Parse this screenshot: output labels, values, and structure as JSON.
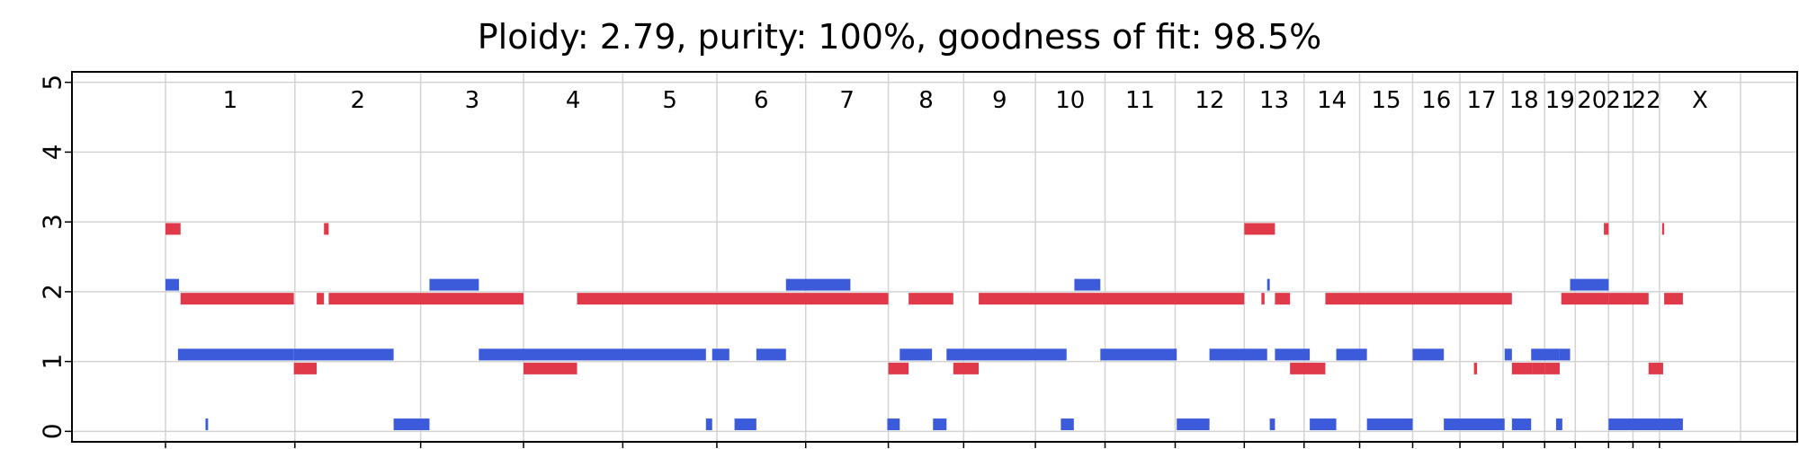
{
  "chart_data": {
    "type": "bar",
    "title": "Ploidy: 2.79, purity: 100%, goodness of fit: 98.5%",
    "xlabel": "",
    "ylabel": "",
    "ylim": [
      -0.15,
      5.15
    ],
    "y_ticks": [
      0,
      1,
      2,
      3,
      4,
      5
    ],
    "xlim_mb": [
      -180,
      3140
    ],
    "grid": true,
    "colors": {
      "major_allele": "#e0394a",
      "minor_allele": "#3b5bdb",
      "grid": "#d3d3d3"
    },
    "chromosomes": [
      {
        "name": "1",
        "start": 0,
        "end": 249
      },
      {
        "name": "2",
        "start": 249,
        "end": 491
      },
      {
        "name": "3",
        "start": 491,
        "end": 689
      },
      {
        "name": "4",
        "start": 689,
        "end": 880
      },
      {
        "name": "5",
        "start": 880,
        "end": 1061
      },
      {
        "name": "6",
        "start": 1061,
        "end": 1232
      },
      {
        "name": "7",
        "start": 1232,
        "end": 1391
      },
      {
        "name": "8",
        "start": 1391,
        "end": 1536
      },
      {
        "name": "9",
        "start": 1536,
        "end": 1674
      },
      {
        "name": "10",
        "start": 1674,
        "end": 1808
      },
      {
        "name": "11",
        "start": 1808,
        "end": 1943
      },
      {
        "name": "12",
        "start": 1943,
        "end": 2076
      },
      {
        "name": "13",
        "start": 2076,
        "end": 2191
      },
      {
        "name": "14",
        "start": 2191,
        "end": 2298
      },
      {
        "name": "15",
        "start": 2298,
        "end": 2400
      },
      {
        "name": "16",
        "start": 2400,
        "end": 2491
      },
      {
        "name": "17",
        "start": 2491,
        "end": 2574
      },
      {
        "name": "18",
        "start": 2574,
        "end": 2654
      },
      {
        "name": "19",
        "start": 2654,
        "end": 2713
      },
      {
        "name": "20",
        "start": 2713,
        "end": 2777
      },
      {
        "name": "21",
        "start": 2777,
        "end": 2824
      },
      {
        "name": "22",
        "start": 2824,
        "end": 2875
      },
      {
        "name": "X",
        "start": 2875,
        "end": 3031
      }
    ],
    "series": [
      {
        "role": "major",
        "segments": [
          {
            "start": 0,
            "end": 29,
            "value": 2.9
          },
          {
            "start": 29,
            "end": 247,
            "value": 1.9
          },
          {
            "start": 247,
            "end": 291,
            "value": 0.9
          },
          {
            "start": 291,
            "end": 305,
            "value": 1.9
          },
          {
            "start": 305,
            "end": 314,
            "value": 2.9
          },
          {
            "start": 314,
            "end": 689,
            "value": 1.9
          },
          {
            "start": 689,
            "end": 792,
            "value": 0.9
          },
          {
            "start": 792,
            "end": 1391,
            "value": 1.9
          },
          {
            "start": 1391,
            "end": 1430,
            "value": 0.9
          },
          {
            "start": 1430,
            "end": 1516,
            "value": 1.9
          },
          {
            "start": 1516,
            "end": 1565,
            "value": 0.9
          },
          {
            "start": 1565,
            "end": 2076,
            "value": 1.9
          },
          {
            "start": 2076,
            "end": 2135,
            "value": 2.9
          },
          {
            "start": 2109,
            "end": 2115,
            "value": 1.9
          },
          {
            "start": 2135,
            "end": 2164,
            "value": 1.9
          },
          {
            "start": 2164,
            "end": 2232,
            "value": 0.9
          },
          {
            "start": 2232,
            "end": 2591,
            "value": 1.9
          },
          {
            "start": 2518,
            "end": 2524,
            "value": 0.9
          },
          {
            "start": 2591,
            "end": 2631,
            "value": 0.9
          },
          {
            "start": 2631,
            "end": 2654,
            "value": 0.9
          },
          {
            "start": 2654,
            "end": 2683,
            "value": 0.9
          },
          {
            "start": 2686,
            "end": 2777,
            "value": 1.9
          },
          {
            "start": 2768,
            "end": 2777,
            "value": 2.9
          },
          {
            "start": 2777,
            "end": 2854,
            "value": 1.9
          },
          {
            "start": 2854,
            "end": 2882,
            "value": 0.9
          },
          {
            "start": 2880,
            "end": 2884,
            "value": 2.9
          },
          {
            "start": 2884,
            "end": 2920,
            "value": 1.9
          }
        ]
      },
      {
        "role": "minor",
        "segments": [
          {
            "start": 0,
            "end": 26,
            "value": 2.1
          },
          {
            "start": 24,
            "end": 247,
            "value": 1.1
          },
          {
            "start": 77,
            "end": 82,
            "value": 0.1
          },
          {
            "start": 247,
            "end": 439,
            "value": 1.1
          },
          {
            "start": 439,
            "end": 508,
            "value": 0.1
          },
          {
            "start": 508,
            "end": 603,
            "value": 2.1
          },
          {
            "start": 603,
            "end": 1040,
            "value": 1.1
          },
          {
            "start": 1040,
            "end": 1052,
            "value": 0.1
          },
          {
            "start": 1052,
            "end": 1085,
            "value": 1.1
          },
          {
            "start": 1095,
            "end": 1137,
            "value": 0.1
          },
          {
            "start": 1137,
            "end": 1194,
            "value": 1.1
          },
          {
            "start": 1194,
            "end": 1318,
            "value": 2.1
          },
          {
            "start": 1389,
            "end": 1413,
            "value": 0.1
          },
          {
            "start": 1413,
            "end": 1475,
            "value": 1.1
          },
          {
            "start": 1477,
            "end": 1503,
            "value": 0.1
          },
          {
            "start": 1503,
            "end": 1734,
            "value": 1.1
          },
          {
            "start": 1723,
            "end": 1748,
            "value": 0.1
          },
          {
            "start": 1749,
            "end": 1799,
            "value": 2.1
          },
          {
            "start": 1799,
            "end": 1946,
            "value": 1.1
          },
          {
            "start": 1946,
            "end": 2009,
            "value": 0.1
          },
          {
            "start": 2009,
            "end": 2120,
            "value": 1.1
          },
          {
            "start": 2120,
            "end": 2125,
            "value": 2.1
          },
          {
            "start": 2125,
            "end": 2135,
            "value": 0.1
          },
          {
            "start": 2135,
            "end": 2202,
            "value": 1.1
          },
          {
            "start": 2202,
            "end": 2253,
            "value": 0.1
          },
          {
            "start": 2253,
            "end": 2312,
            "value": 1.1
          },
          {
            "start": 2312,
            "end": 2400,
            "value": 0.1
          },
          {
            "start": 2400,
            "end": 2460,
            "value": 1.1
          },
          {
            "start": 2460,
            "end": 2577,
            "value": 0.1
          },
          {
            "start": 2577,
            "end": 2591,
            "value": 1.1
          },
          {
            "start": 2591,
            "end": 2628,
            "value": 0.1
          },
          {
            "start": 2628,
            "end": 2682,
            "value": 1.1
          },
          {
            "start": 2676,
            "end": 2688,
            "value": 0.1
          },
          {
            "start": 2682,
            "end": 2703,
            "value": 1.1
          },
          {
            "start": 2703,
            "end": 2777,
            "value": 2.1
          },
          {
            "start": 2777,
            "end": 2920,
            "value": 0.1
          }
        ]
      }
    ]
  }
}
